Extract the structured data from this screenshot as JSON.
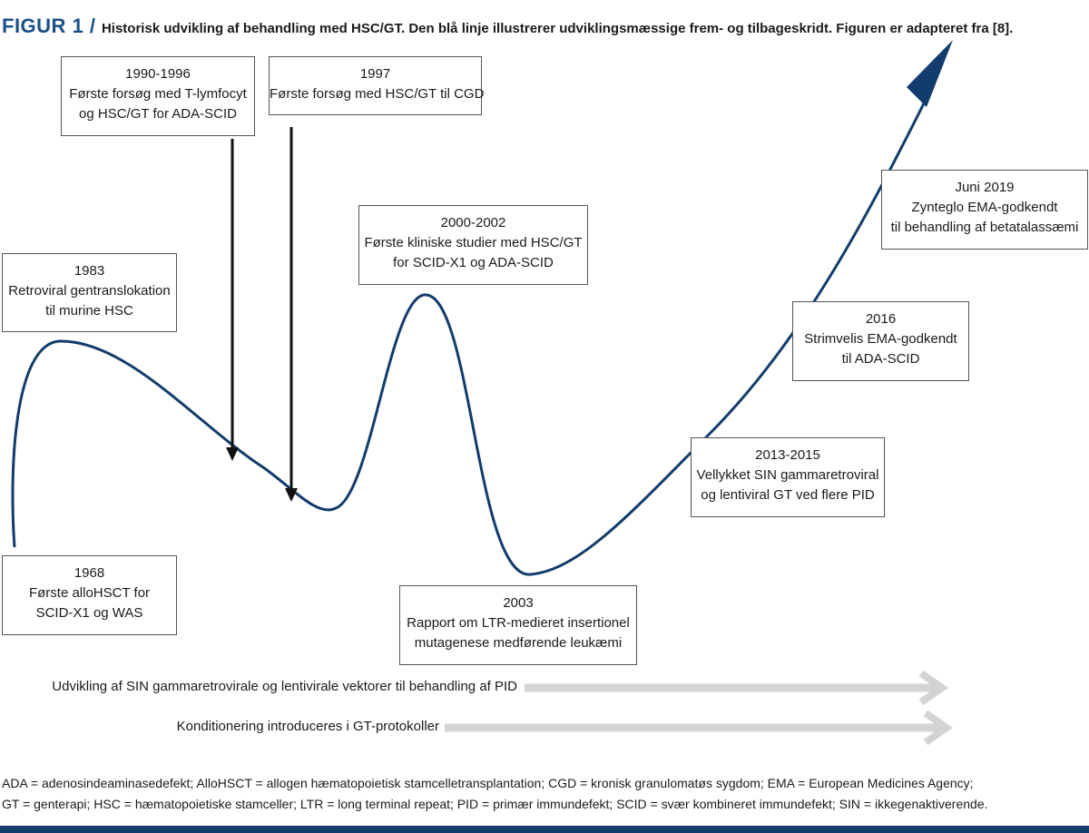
{
  "header": {
    "figure_label": "FIGUR 1 /",
    "caption": "Historisk udvikling af behandling med HSC/GT. Den blå linje illustrerer udviklingsmæssige frem- og tilbageskridt. Figuren er adapteret fra [8]."
  },
  "milestones": [
    {
      "year": "1968",
      "line1": "Første alloHSCT for",
      "line2": "SCID-X1 og WAS"
    },
    {
      "year": "1983",
      "line1": "Retroviral gentranslokation",
      "line2": "til murine HSC"
    },
    {
      "year": "1990-1996",
      "line1": "Første forsøg med T-lymfocyt",
      "line2": "og HSC/GT for ADA-SCID"
    },
    {
      "year": "1997",
      "line1": "Første forsøg med HSC/GT til CGD"
    },
    {
      "year": "2000-2002",
      "line1": "Første kliniske studier med HSC/GT",
      "line2": "for SCID-X1 og ADA-SCID"
    },
    {
      "year": "2003",
      "line1": "Rapport om LTR-medieret insertionel",
      "line2": "mutagenese medførende leukæmi"
    },
    {
      "year": "2013-2015",
      "line1": "Vellykket SIN gammaretroviral",
      "line2": "og lentiviral GT ved flere PID"
    },
    {
      "year": "2016",
      "line1": "Strimvelis EMA-godkendt",
      "line2": "til ADA-SCID"
    },
    {
      "year": "Juni 2019",
      "line1": "Zynteglo EMA-godkendt",
      "line2": "til behandling af betatalassæmi"
    }
  ],
  "tracks": [
    {
      "label": "Udvikling af SIN gammaretrovirale og lentivirale vektorer til behandling af PID"
    },
    {
      "label": "Konditionering introduceres i GT-protokoller"
    }
  ],
  "footnote": {
    "line1": "ADA = adenosindeaminasedefekt; AlloHSCT = allogen hæmatopoietisk stamcelletransplantation; CGD = kronisk granulomatøs sygdom; EMA = European Medicines Agency;",
    "line2": "GT = genterapi; HSC = hæmatopoietiske stamceller; LTR = long terminal repeat; PID = primær immundefekt; SCID = svær kombineret immundefekt; SIN = ikkegenaktiverende."
  },
  "colors": {
    "curve": "#123c6b",
    "figure_label": "#1b4f8a",
    "track_arrow": "#d3d3d3",
    "black_arrow": "#111111"
  },
  "icons": {
    "curve_head": "arrow-head-icon",
    "pointer": "down-arrow-icon",
    "track_head": "chevron-right-icon"
  }
}
